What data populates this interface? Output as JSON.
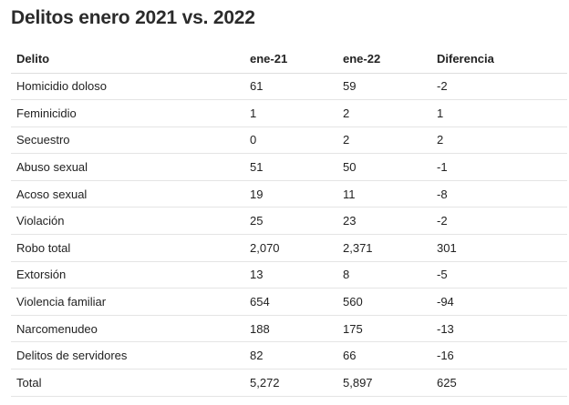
{
  "header": {
    "title": "Delitos enero 2021 vs. 2022"
  },
  "table": {
    "columns": [
      "Delito",
      "ene-21",
      "ene-22",
      "Diferencia"
    ],
    "rows": [
      [
        "Homicidio doloso",
        "61",
        "59",
        "-2"
      ],
      [
        "Feminicidio",
        "1",
        "2",
        "1"
      ],
      [
        "Secuestro",
        "0",
        "2",
        "2"
      ],
      [
        "Abuso sexual",
        "51",
        "50",
        "-1"
      ],
      [
        "Acoso sexual",
        "19",
        "11",
        "-8"
      ],
      [
        "Violación",
        "25",
        "23",
        "-2"
      ],
      [
        "Robo total",
        "2,070",
        "2,371",
        "301"
      ],
      [
        "Extorsión",
        "13",
        "8",
        "-5"
      ],
      [
        "Violencia familiar",
        "654",
        "560",
        "-94"
      ],
      [
        "Narcomenudeo",
        "188",
        "175",
        "-13"
      ],
      [
        "Delitos de servidores",
        "82",
        "66",
        "-16"
      ],
      [
        "Total",
        "5,272",
        "5,897",
        "625"
      ]
    ]
  }
}
